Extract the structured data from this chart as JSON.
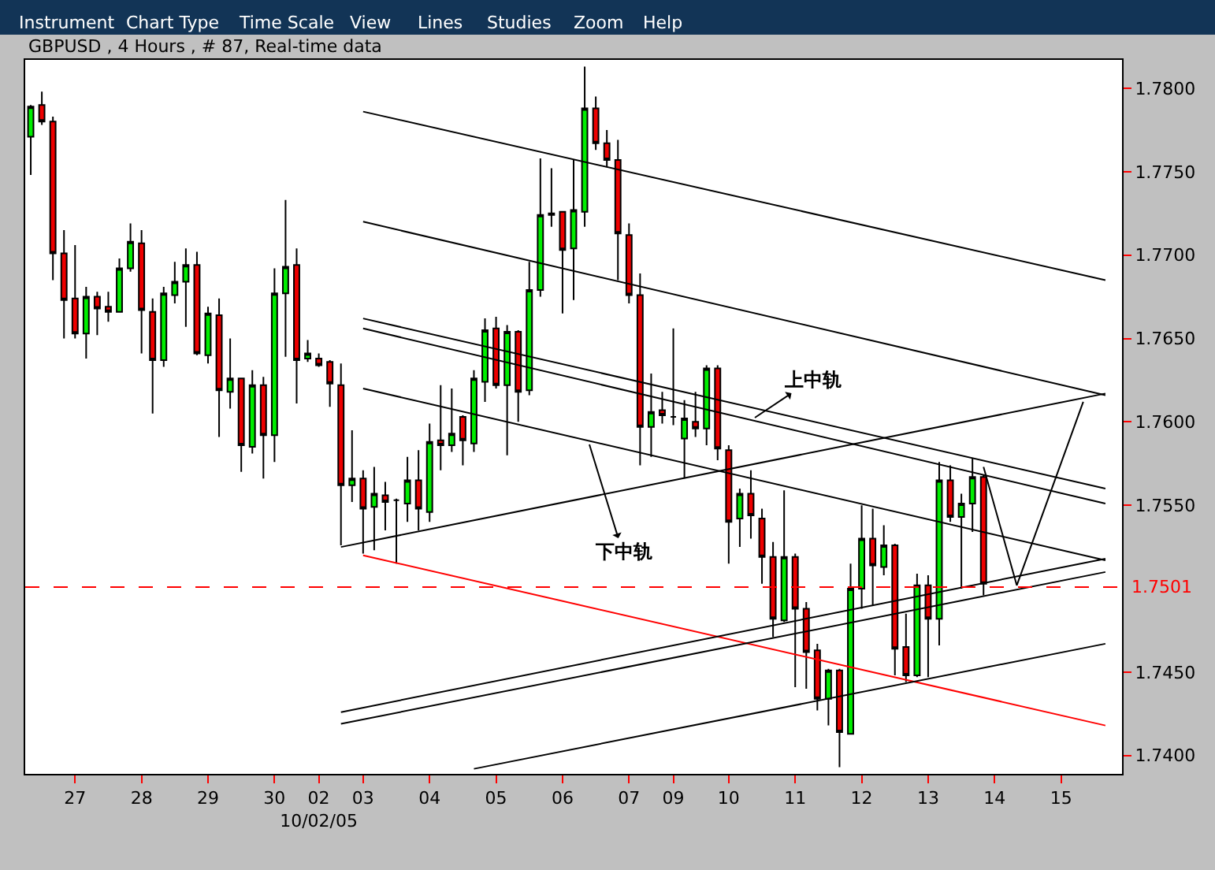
{
  "chart_data": {
    "type": "candlestick",
    "title": "GBPUSD , 4 Hours , # 87, Real-time data",
    "categories": [
      null,
      null,
      null,
      null,
      "27",
      null,
      null,
      null,
      null,
      null,
      "28",
      null,
      null,
      null,
      null,
      null,
      "29",
      null,
      null,
      null,
      null,
      null,
      "30",
      null,
      null,
      null,
      "02\n10/02/05",
      null,
      null,
      null,
      "03",
      null,
      null,
      null,
      null,
      null,
      "04",
      null,
      null,
      null,
      null,
      null,
      "05",
      null,
      null,
      null,
      null,
      null,
      "06",
      null,
      null,
      null,
      null,
      null,
      "07",
      null,
      null,
      null,
      "09",
      null,
      null,
      null,
      null,
      "10",
      null,
      null,
      null,
      null,
      null,
      "11",
      null,
      null,
      null,
      null,
      null,
      "12",
      null,
      null,
      null,
      null,
      null,
      "13",
      null,
      null,
      null,
      null,
      null,
      "14",
      null,
      null,
      null,
      null,
      null,
      "15",
      null,
      null,
      null,
      null,
      null
    ],
    "ohlc": [
      [
        1.7771,
        1.779,
        1.7748,
        1.7789
      ],
      [
        1.779,
        1.7798,
        1.7778,
        1.778
      ],
      [
        1.778,
        1.7783,
        1.7685,
        1.7701
      ],
      [
        1.7701,
        1.7715,
        1.765,
        1.7673
      ],
      [
        1.7674,
        1.7706,
        1.765,
        1.7653
      ],
      [
        1.7653,
        1.7681,
        1.7638,
        1.7675
      ],
      [
        1.7675,
        1.7678,
        1.7652,
        1.7668
      ],
      [
        1.7669,
        1.7678,
        1.766,
        1.7666
      ],
      [
        1.7666,
        1.7698,
        1.7666,
        1.7692
      ],
      [
        1.7692,
        1.7719,
        1.769,
        1.7708
      ],
      [
        1.7707,
        1.7715,
        1.7641,
        1.7667
      ],
      [
        1.7666,
        1.7674,
        1.7605,
        1.7637
      ],
      [
        1.7637,
        1.7681,
        1.7633,
        1.7677
      ],
      [
        1.7676,
        1.7696,
        1.7671,
        1.7684
      ],
      [
        1.7684,
        1.7704,
        1.7657,
        1.7694
      ],
      [
        1.7694,
        1.7702,
        1.764,
        1.7641
      ],
      [
        1.764,
        1.7669,
        1.7635,
        1.7665
      ],
      [
        1.7664,
        1.7674,
        1.7591,
        1.7619
      ],
      [
        1.7618,
        1.765,
        1.7608,
        1.7626
      ],
      [
        1.7626,
        1.7626,
        1.757,
        1.7586
      ],
      [
        1.7585,
        1.7631,
        1.7581,
        1.7622
      ],
      [
        1.7622,
        1.7627,
        1.7566,
        1.7592
      ],
      [
        1.7592,
        1.7692,
        1.7576,
        1.7677
      ],
      [
        1.7677,
        1.7733,
        1.7639,
        1.7693
      ],
      [
        1.7694,
        1.7704,
        1.7611,
        1.7637
      ],
      [
        1.7638,
        1.7649,
        1.7636,
        1.7641
      ],
      [
        1.7638,
        1.7641,
        1.7633,
        1.7634
      ],
      [
        1.7636,
        1.7637,
        1.7609,
        1.7623
      ],
      [
        1.7622,
        1.7635,
        1.7526,
        1.7562
      ],
      [
        1.7562,
        1.7595,
        1.7552,
        1.7566
      ],
      [
        1.7566,
        1.7571,
        1.7521,
        1.7548
      ],
      [
        1.7549,
        1.7573,
        1.7523,
        1.7557
      ],
      [
        1.7556,
        1.7564,
        1.7535,
        1.7552
      ],
      [
        1.7553,
        1.7554,
        1.7515,
        1.7553
      ],
      [
        1.7551,
        1.7579,
        1.754,
        1.7565
      ],
      [
        1.7565,
        1.7583,
        1.7535,
        1.7548
      ],
      [
        1.7546,
        1.7599,
        1.754,
        1.7588
      ],
      [
        1.7589,
        1.7622,
        1.7571,
        1.7586
      ],
      [
        1.7586,
        1.762,
        1.7582,
        1.7593
      ],
      [
        1.7603,
        1.7604,
        1.7574,
        1.7589
      ],
      [
        1.7587,
        1.7631,
        1.7582,
        1.7626
      ],
      [
        1.7624,
        1.7662,
        1.7612,
        1.7655
      ],
      [
        1.7656,
        1.7663,
        1.762,
        1.7622
      ],
      [
        1.7622,
        1.7658,
        1.758,
        1.7654
      ],
      [
        1.7654,
        1.7655,
        1.76,
        1.7618
      ],
      [
        1.7619,
        1.7696,
        1.7616,
        1.7679
      ],
      [
        1.7679,
        1.7758,
        1.7675,
        1.7724
      ],
      [
        1.7725,
        1.7752,
        1.7717,
        1.7724
      ],
      [
        1.7726,
        1.7726,
        1.7665,
        1.7703
      ],
      [
        1.7704,
        1.7757,
        1.7673,
        1.7727
      ],
      [
        1.7726,
        1.7813,
        1.7717,
        1.7788
      ],
      [
        1.7788,
        1.7795,
        1.7763,
        1.7767
      ],
      [
        1.7767,
        1.7775,
        1.7753,
        1.7757
      ],
      [
        1.7757,
        1.7769,
        1.7685,
        1.7713
      ],
      [
        1.7712,
        1.7719,
        1.7671,
        1.7676
      ],
      [
        1.7676,
        1.7689,
        1.7574,
        1.7597
      ],
      [
        1.7597,
        1.7629,
        1.7579,
        1.7606
      ],
      [
        1.7607,
        1.7618,
        1.7599,
        1.7604
      ],
      [
        1.7603,
        1.7656,
        1.7598,
        1.7603
      ],
      [
        1.759,
        1.7613,
        1.7566,
        1.7602
      ],
      [
        1.76,
        1.7618,
        1.7591,
        1.7596
      ],
      [
        1.7596,
        1.7634,
        1.7586,
        1.7632
      ],
      [
        1.7632,
        1.7634,
        1.7577,
        1.7584
      ],
      [
        1.7583,
        1.7586,
        1.7515,
        1.754
      ],
      [
        1.7542,
        1.756,
        1.7525,
        1.7557
      ],
      [
        1.7557,
        1.7571,
        1.753,
        1.7544
      ],
      [
        1.7542,
        1.7548,
        1.7503,
        1.7519
      ],
      [
        1.7519,
        1.7528,
        1.7471,
        1.7482
      ],
      [
        1.7481,
        1.7559,
        1.748,
        1.7519
      ],
      [
        1.7519,
        1.7521,
        1.7441,
        1.7488
      ],
      [
        1.7488,
        1.7492,
        1.744,
        1.7462
      ],
      [
        1.7463,
        1.7467,
        1.7427,
        1.7434
      ],
      [
        1.7434,
        1.7452,
        1.7418,
        1.7451
      ],
      [
        1.7451,
        1.7452,
        1.7393,
        1.7414
      ],
      [
        1.7413,
        1.7515,
        1.7413,
        1.75
      ],
      [
        1.75,
        1.755,
        1.7488,
        1.753
      ],
      [
        1.753,
        1.7548,
        1.749,
        1.7514
      ],
      [
        1.7513,
        1.7538,
        1.7508,
        1.7526
      ],
      [
        1.7526,
        1.7527,
        1.7448,
        1.7464
      ],
      [
        1.7465,
        1.7485,
        1.7444,
        1.7448
      ],
      [
        1.7448,
        1.7509,
        1.7447,
        1.7502
      ],
      [
        1.7502,
        1.7508,
        1.7447,
        1.7482
      ],
      [
        1.7482,
        1.7576,
        1.7466,
        1.7565
      ],
      [
        1.7565,
        1.7574,
        1.754,
        1.7543
      ],
      [
        1.7543,
        1.7557,
        1.75,
        1.7551
      ],
      [
        1.7551,
        1.7578,
        1.7534,
        1.7567
      ],
      [
        1.7567,
        1.7568,
        1.7496,
        1.7503
      ],
      null,
      null,
      null,
      null,
      null,
      null,
      null,
      null,
      null,
      null,
      null,
      null
    ],
    "series": [
      {
        "type": "line",
        "color": "#000000",
        "values": [
          null,
          null,
          null,
          null,
          null,
          null,
          null,
          null,
          null,
          null,
          null,
          null,
          null,
          null,
          null,
          null,
          null,
          null,
          null,
          null,
          null,
          null,
          null,
          null,
          null,
          null,
          null,
          null,
          null,
          null,
          1.7786,
          null,
          null,
          null,
          null,
          null,
          null,
          null,
          null,
          null,
          null,
          null,
          null,
          null,
          null,
          null,
          null,
          null,
          null,
          null,
          null,
          null,
          null,
          null,
          null,
          null,
          null,
          null,
          null,
          null,
          null,
          null,
          null,
          null,
          null,
          null,
          null,
          null,
          null,
          null,
          null,
          null,
          null,
          null,
          null,
          null,
          null,
          null,
          null,
          null,
          null,
          null,
          null,
          null,
          null,
          null,
          null,
          null,
          null,
          null,
          null,
          null,
          null,
          null,
          null,
          null,
          null,
          1.7685,
          null
        ]
      },
      {
        "type": "line",
        "color": "#000000",
        "values": [
          null,
          null,
          null,
          null,
          null,
          null,
          null,
          null,
          null,
          null,
          null,
          null,
          null,
          null,
          null,
          null,
          null,
          null,
          null,
          null,
          null,
          null,
          null,
          null,
          null,
          null,
          null,
          null,
          null,
          null,
          1.772,
          null,
          null,
          null,
          null,
          null,
          null,
          null,
          null,
          null,
          null,
          null,
          null,
          null,
          null,
          null,
          null,
          null,
          null,
          null,
          null,
          null,
          null,
          null,
          null,
          null,
          null,
          null,
          null,
          null,
          null,
          null,
          null,
          null,
          null,
          null,
          null,
          null,
          null,
          null,
          null,
          null,
          null,
          null,
          null,
          null,
          null,
          null,
          null,
          null,
          null,
          null,
          null,
          null,
          null,
          null,
          null,
          null,
          null,
          null,
          null,
          null,
          null,
          null,
          null,
          null,
          null,
          1.7616,
          null
        ]
      },
      {
        "type": "line",
        "color": "#000000",
        "values": [
          null,
          null,
          null,
          null,
          null,
          null,
          null,
          null,
          null,
          null,
          null,
          null,
          null,
          null,
          null,
          null,
          null,
          null,
          null,
          null,
          null,
          null,
          null,
          null,
          null,
          null,
          null,
          null,
          null,
          null,
          1.7662,
          null,
          null,
          null,
          null,
          null,
          null,
          null,
          null,
          null,
          null,
          null,
          null,
          null,
          null,
          null,
          null,
          null,
          null,
          null,
          null,
          null,
          null,
          null,
          null,
          null,
          null,
          null,
          null,
          null,
          null,
          null,
          null,
          null,
          null,
          null,
          null,
          null,
          null,
          null,
          null,
          null,
          null,
          null,
          null,
          null,
          null,
          null,
          null,
          null,
          null,
          null,
          null,
          null,
          null,
          null,
          null,
          null,
          null,
          null,
          null,
          null,
          null,
          null,
          null,
          null,
          null,
          1.756,
          null
        ]
      },
      {
        "type": "line",
        "color": "#000000",
        "values": [
          null,
          null,
          null,
          null,
          null,
          null,
          null,
          null,
          null,
          null,
          null,
          null,
          null,
          null,
          null,
          null,
          null,
          null,
          null,
          null,
          null,
          null,
          null,
          null,
          null,
          null,
          null,
          null,
          null,
          null,
          1.7656,
          null,
          null,
          null,
          null,
          null,
          null,
          null,
          null,
          null,
          null,
          null,
          null,
          null,
          null,
          null,
          null,
          null,
          null,
          null,
          null,
          null,
          null,
          null,
          null,
          null,
          null,
          null,
          null,
          null,
          null,
          null,
          null,
          null,
          null,
          null,
          null,
          null,
          null,
          null,
          null,
          null,
          null,
          null,
          null,
          null,
          null,
          null,
          null,
          null,
          null,
          null,
          null,
          null,
          null,
          null,
          null,
          null,
          null,
          null,
          null,
          null,
          null,
          null,
          null,
          null,
          null,
          1.7551,
          null
        ]
      },
      {
        "type": "line",
        "color": "#000000",
        "values": [
          null,
          null,
          null,
          null,
          null,
          null,
          null,
          null,
          null,
          null,
          null,
          null,
          null,
          null,
          null,
          null,
          null,
          null,
          null,
          null,
          null,
          null,
          null,
          null,
          null,
          null,
          null,
          null,
          null,
          null,
          1.762,
          null,
          null,
          null,
          null,
          null,
          null,
          null,
          null,
          null,
          null,
          null,
          null,
          null,
          null,
          null,
          null,
          null,
          null,
          null,
          null,
          null,
          null,
          null,
          null,
          null,
          null,
          null,
          null,
          null,
          null,
          null,
          null,
          null,
          null,
          null,
          null,
          null,
          null,
          null,
          null,
          null,
          null,
          null,
          null,
          null,
          null,
          null,
          null,
          null,
          null,
          null,
          null,
          null,
          null,
          null,
          null,
          null,
          null,
          null,
          null,
          null,
          null,
          null,
          null,
          null,
          null,
          1.7517,
          null
        ]
      },
      {
        "type": "line",
        "color": "#000000",
        "values": [
          null,
          null,
          null,
          null,
          null,
          null,
          null,
          null,
          null,
          null,
          null,
          null,
          null,
          null,
          null,
          null,
          null,
          null,
          null,
          null,
          null,
          null,
          null,
          null,
          null,
          null,
          null,
          null,
          1.7525,
          null,
          null,
          null,
          null,
          null,
          null,
          null,
          null,
          null,
          null,
          null,
          null,
          null,
          null,
          null,
          null,
          null,
          null,
          null,
          null,
          null,
          null,
          null,
          null,
          null,
          null,
          null,
          null,
          null,
          null,
          null,
          null,
          null,
          null,
          null,
          null,
          null,
          null,
          null,
          null,
          null,
          null,
          null,
          null,
          null,
          null,
          null,
          null,
          null,
          null,
          null,
          null,
          null,
          null,
          null,
          null,
          null,
          null,
          null,
          null,
          null,
          null,
          null,
          null,
          null,
          null,
          null,
          null,
          1.7617,
          null
        ]
      },
      {
        "type": "line",
        "color": "#ff0000",
        "values": [
          null,
          null,
          null,
          null,
          null,
          null,
          null,
          null,
          null,
          null,
          null,
          null,
          null,
          null,
          null,
          null,
          null,
          null,
          null,
          null,
          null,
          null,
          null,
          null,
          null,
          null,
          null,
          null,
          null,
          null,
          1.752,
          null,
          null,
          null,
          null,
          null,
          null,
          null,
          null,
          null,
          null,
          null,
          null,
          null,
          null,
          null,
          null,
          null,
          null,
          null,
          null,
          null,
          null,
          null,
          null,
          null,
          null,
          null,
          null,
          null,
          null,
          null,
          null,
          null,
          null,
          null,
          null,
          null,
          null,
          null,
          null,
          null,
          null,
          null,
          null,
          null,
          null,
          null,
          null,
          null,
          null,
          null,
          null,
          null,
          null,
          null,
          null,
          null,
          null,
          null,
          null,
          null,
          null,
          null,
          null,
          null,
          null,
          1.7418,
          null
        ]
      },
      {
        "type": "line",
        "color": "#000000",
        "values": [
          null,
          null,
          null,
          null,
          null,
          null,
          null,
          null,
          null,
          null,
          null,
          null,
          null,
          null,
          null,
          null,
          null,
          null,
          null,
          null,
          null,
          null,
          null,
          null,
          null,
          null,
          null,
          null,
          1.7426,
          null,
          null,
          null,
          null,
          null,
          null,
          null,
          null,
          null,
          null,
          null,
          null,
          null,
          null,
          null,
          null,
          null,
          null,
          null,
          null,
          null,
          null,
          null,
          null,
          null,
          null,
          null,
          null,
          null,
          null,
          null,
          null,
          null,
          null,
          null,
          null,
          null,
          null,
          null,
          null,
          null,
          null,
          null,
          null,
          null,
          null,
          null,
          null,
          null,
          null,
          null,
          null,
          null,
          null,
          null,
          null,
          null,
          null,
          null,
          null,
          null,
          null,
          null,
          null,
          null,
          null,
          null,
          null,
          1.7518,
          null
        ]
      },
      {
        "type": "line",
        "color": "#000000",
        "values": [
          null,
          null,
          null,
          null,
          null,
          null,
          null,
          null,
          null,
          null,
          null,
          null,
          null,
          null,
          null,
          null,
          null,
          null,
          null,
          null,
          null,
          null,
          null,
          null,
          null,
          null,
          null,
          null,
          1.7419,
          null,
          null,
          null,
          null,
          null,
          null,
          null,
          null,
          null,
          null,
          null,
          null,
          null,
          null,
          null,
          null,
          null,
          null,
          null,
          null,
          null,
          null,
          null,
          null,
          null,
          null,
          null,
          null,
          null,
          null,
          null,
          null,
          null,
          null,
          null,
          null,
          null,
          null,
          null,
          null,
          null,
          null,
          null,
          null,
          null,
          null,
          null,
          null,
          null,
          null,
          null,
          null,
          null,
          null,
          null,
          null,
          null,
          null,
          null,
          null,
          null,
          null,
          null,
          null,
          null,
          null,
          null,
          null,
          1.751,
          null
        ]
      },
      {
        "type": "line",
        "color": "#000000",
        "values": [
          null,
          null,
          null,
          null,
          null,
          null,
          null,
          null,
          null,
          null,
          null,
          null,
          null,
          null,
          null,
          null,
          null,
          null,
          null,
          null,
          null,
          null,
          null,
          null,
          null,
          null,
          null,
          null,
          null,
          null,
          null,
          null,
          null,
          null,
          null,
          null,
          null,
          null,
          null,
          null,
          1.7392,
          null,
          null,
          null,
          null,
          null,
          null,
          null,
          null,
          null,
          null,
          null,
          null,
          null,
          null,
          null,
          null,
          null,
          null,
          null,
          null,
          null,
          null,
          null,
          null,
          null,
          null,
          null,
          null,
          null,
          null,
          null,
          null,
          null,
          null,
          null,
          null,
          null,
          null,
          null,
          null,
          null,
          null,
          null,
          null,
          null,
          null,
          null,
          null,
          null,
          null,
          null,
          null,
          null,
          null,
          null,
          null,
          1.7467,
          null
        ]
      },
      {
        "type": "line",
        "color": "#000000",
        "values": [
          null,
          null,
          null,
          null,
          null,
          null,
          null,
          null,
          null,
          null,
          null,
          null,
          null,
          null,
          null,
          null,
          null,
          null,
          null,
          null,
          null,
          null,
          null,
          null,
          null,
          null,
          null,
          null,
          null,
          null,
          null,
          null,
          null,
          null,
          null,
          null,
          null,
          null,
          null,
          null,
          null,
          null,
          null,
          null,
          null,
          null,
          null,
          null,
          null,
          null,
          null,
          null,
          null,
          null,
          null,
          null,
          null,
          null,
          null,
          null,
          null,
          null,
          null,
          null,
          null,
          null,
          null,
          null,
          null,
          null,
          null,
          null,
          null,
          null,
          null,
          null,
          null,
          null,
          null,
          null,
          null,
          null,
          null,
          null,
          null,
          null,
          1.7573,
          null,
          null,
          1.7502,
          null,
          null,
          null,
          null,
          null,
          1.7612,
          null,
          null,
          null
        ]
      }
    ],
    "ref_lines": [
      {
        "axis": "y",
        "value": 1.7501,
        "label": "1.7501",
        "color": "#ff0000",
        "line_style": "dashed"
      }
    ],
    "ylim": [
      1.7389,
      1.7817
    ],
    "yticks": [
      {
        "value": 1.74,
        "label": "1.7400"
      },
      {
        "value": 1.745,
        "label": "1.7450"
      },
      {
        "value": 1.755,
        "label": "1.7550"
      },
      {
        "value": 1.76,
        "label": "1.7600"
      },
      {
        "value": 1.765,
        "label": "1.7650"
      },
      {
        "value": 1.77,
        "label": "1.7700"
      },
      {
        "value": 1.775,
        "label": "1.7750"
      },
      {
        "value": 1.78,
        "label": "1.7800"
      }
    ],
    "annotations": [
      "Instrument",
      "Chart Type",
      "Time Scale",
      "View",
      "Lines",
      "Studies",
      "Zoom",
      "Help",
      "上中轨",
      "下中轨"
    ]
  }
}
